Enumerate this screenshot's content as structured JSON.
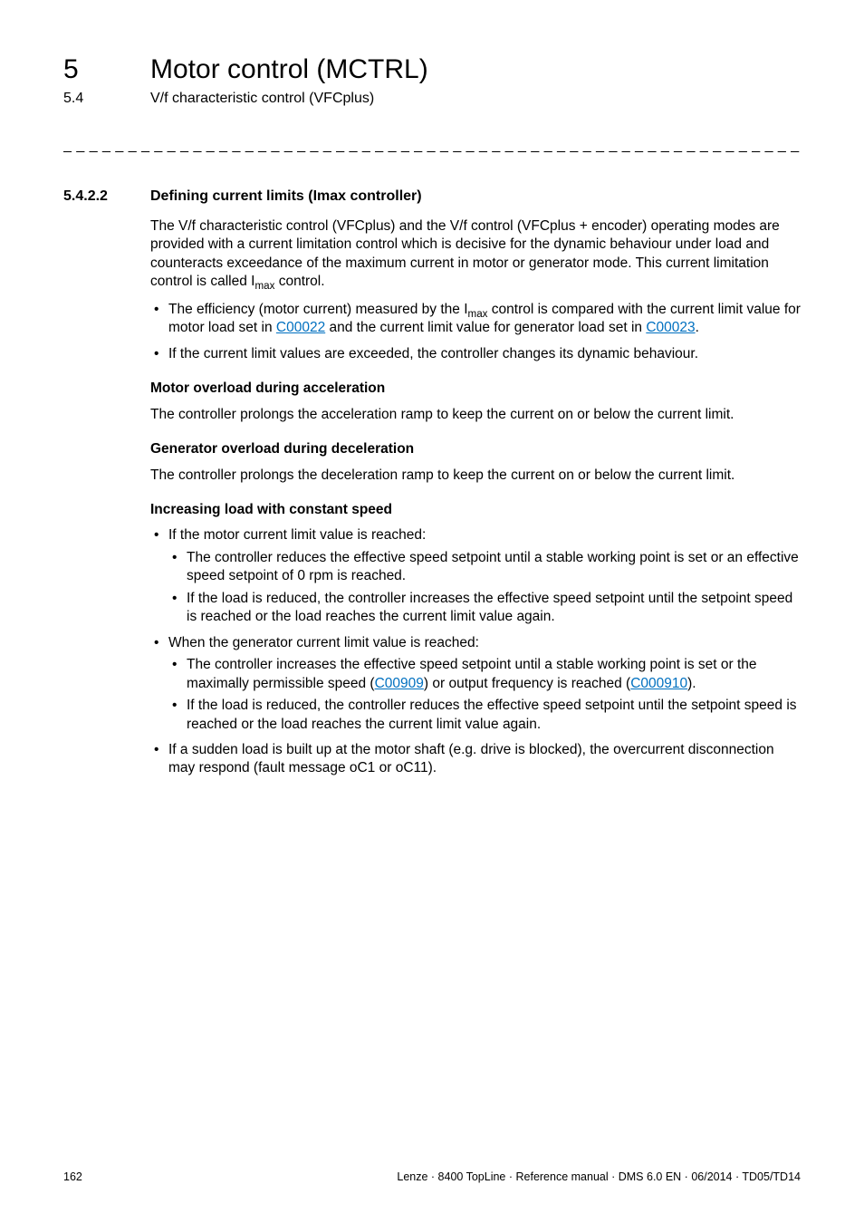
{
  "header": {
    "chapter_number": "5",
    "chapter_title": "Motor control (MCTRL)",
    "section_number": "5.4",
    "section_title": "V/f characteristic control (VFCplus)"
  },
  "dash_line": "_ _ _ _ _ _ _ _ _ _ _ _ _ _ _ _ _ _ _ _ _ _ _ _ _ _ _ _ _ _ _ _ _ _ _ _ _ _ _ _ _ _ _ _ _ _ _ _ _ _ _ _ _ _ _ _ _ _ _ _ _ _ _ _",
  "subsection": {
    "number": "5.4.2.2",
    "title": "Defining current limits (Imax controller)"
  },
  "intro": {
    "p1_a": "The V/f characteristic control (VFCplus) and the V/f control (VFCplus + encoder) operating modes are provided with a current limitation control which is decisive for the dynamic behaviour under load and counteracts exceedance of the maximum current in motor or generator mode. This current limitation control is called I",
    "p1_b": " control."
  },
  "intro_bullets": {
    "b1_a": "The efficiency (motor current) measured by the I",
    "b1_b": " control is compared with the current limit value for motor load set in ",
    "b1_link1": "C00022",
    "b1_c": " and the current limit value for generator load set in ",
    "b1_link2": "C00023",
    "b1_d": ".",
    "b2": "If the current limit values are exceeded, the controller changes its dynamic behaviour."
  },
  "motor_overload": {
    "heading": "Motor overload during acceleration",
    "p": "The controller prolongs the acceleration ramp to keep the current on or below the current limit."
  },
  "generator_overload": {
    "heading": "Generator overload during deceleration",
    "p": "The controller prolongs the deceleration ramp to keep the current on or below the current limit."
  },
  "increasing_load": {
    "heading": "Increasing load with constant speed",
    "b1": "If the motor current limit value is reached:",
    "b1_s1": "The controller reduces the effective speed setpoint until a stable working point is set or an effective speed setpoint of 0 rpm is reached.",
    "b1_s2": "If the load is reduced, the controller increases the effective speed setpoint until the setpoint speed is reached or the load reaches the current limit value again.",
    "b2": "When the generator current limit value is reached:",
    "b2_s1_a": "The controller increases the effective speed setpoint until a stable working point is set or the maximally permissible speed (",
    "b2_s1_link1": "C00909",
    "b2_s1_b": ") or output frequency is reached (",
    "b2_s1_link2": "C000910",
    "b2_s1_c": ").",
    "b2_s2": "If the load is reduced, the controller reduces the effective speed setpoint until the setpoint speed is reached or the load reaches the current limit value again.",
    "b3": "If a sudden load is built up at the motor shaft (e.g. drive is blocked), the overcurrent disconnection may respond (fault message oC1 or oC11)."
  },
  "footer": {
    "page": "162",
    "imprint": "Lenze · 8400 TopLine · Reference manual · DMS 6.0 EN · 06/2014 · TD05/TD14"
  },
  "sub_max": "max"
}
